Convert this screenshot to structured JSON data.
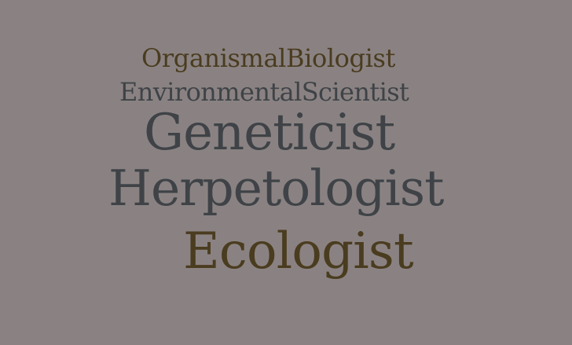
{
  "background_color": "#8a8282",
  "words": [
    {
      "text": "OrganismalBiologist",
      "color": "#4a3c1f"
    },
    {
      "text": "EnvironmentalScientist",
      "color": "#3f4347"
    },
    {
      "text": "Geneticist",
      "color": "#3f4347"
    },
    {
      "text": "Herpetologist",
      "color": "#3f4347"
    },
    {
      "text": "Ecologist",
      "color": "#4a3c1f"
    }
  ]
}
